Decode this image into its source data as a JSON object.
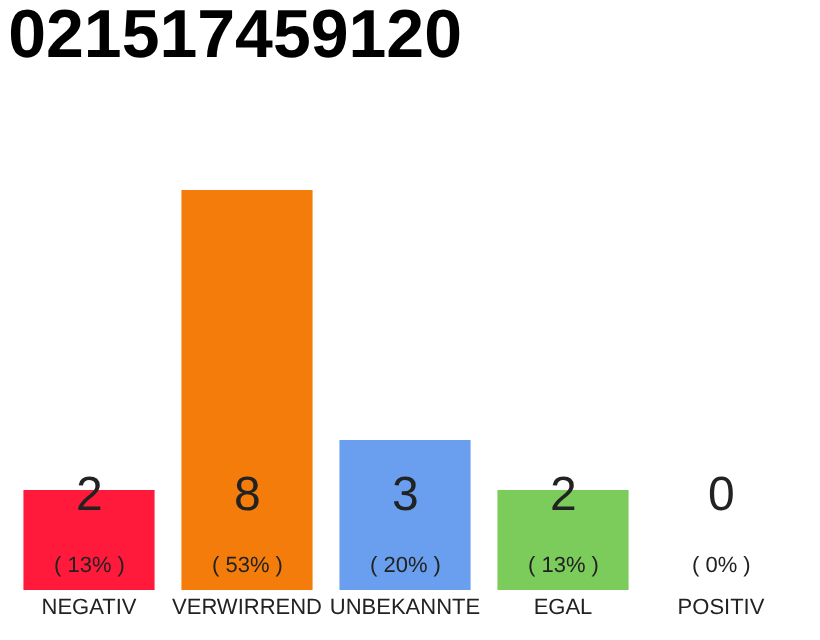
{
  "chart_data": {
    "type": "bar",
    "title": "021517459120",
    "categories": [
      "NEGATIV",
      "VERWIRREND",
      "UNBEKANNTE",
      "EGAL",
      "POSITIV"
    ],
    "values": [
      2,
      8,
      3,
      2,
      0
    ],
    "colors": [
      "#ff1a3c",
      "#f47c0a",
      "#6a9fef",
      "#7ccc5c",
      "#cccccc"
    ],
    "value_labels": [
      "2\n( 13% )",
      "8\n( 53% )",
      "3\n( 20% )",
      "2\n( 13% )",
      "0\n( 0% )"
    ],
    "ylim": [
      0,
      8
    ],
    "tick_labels": "x",
    "grid": false
  }
}
